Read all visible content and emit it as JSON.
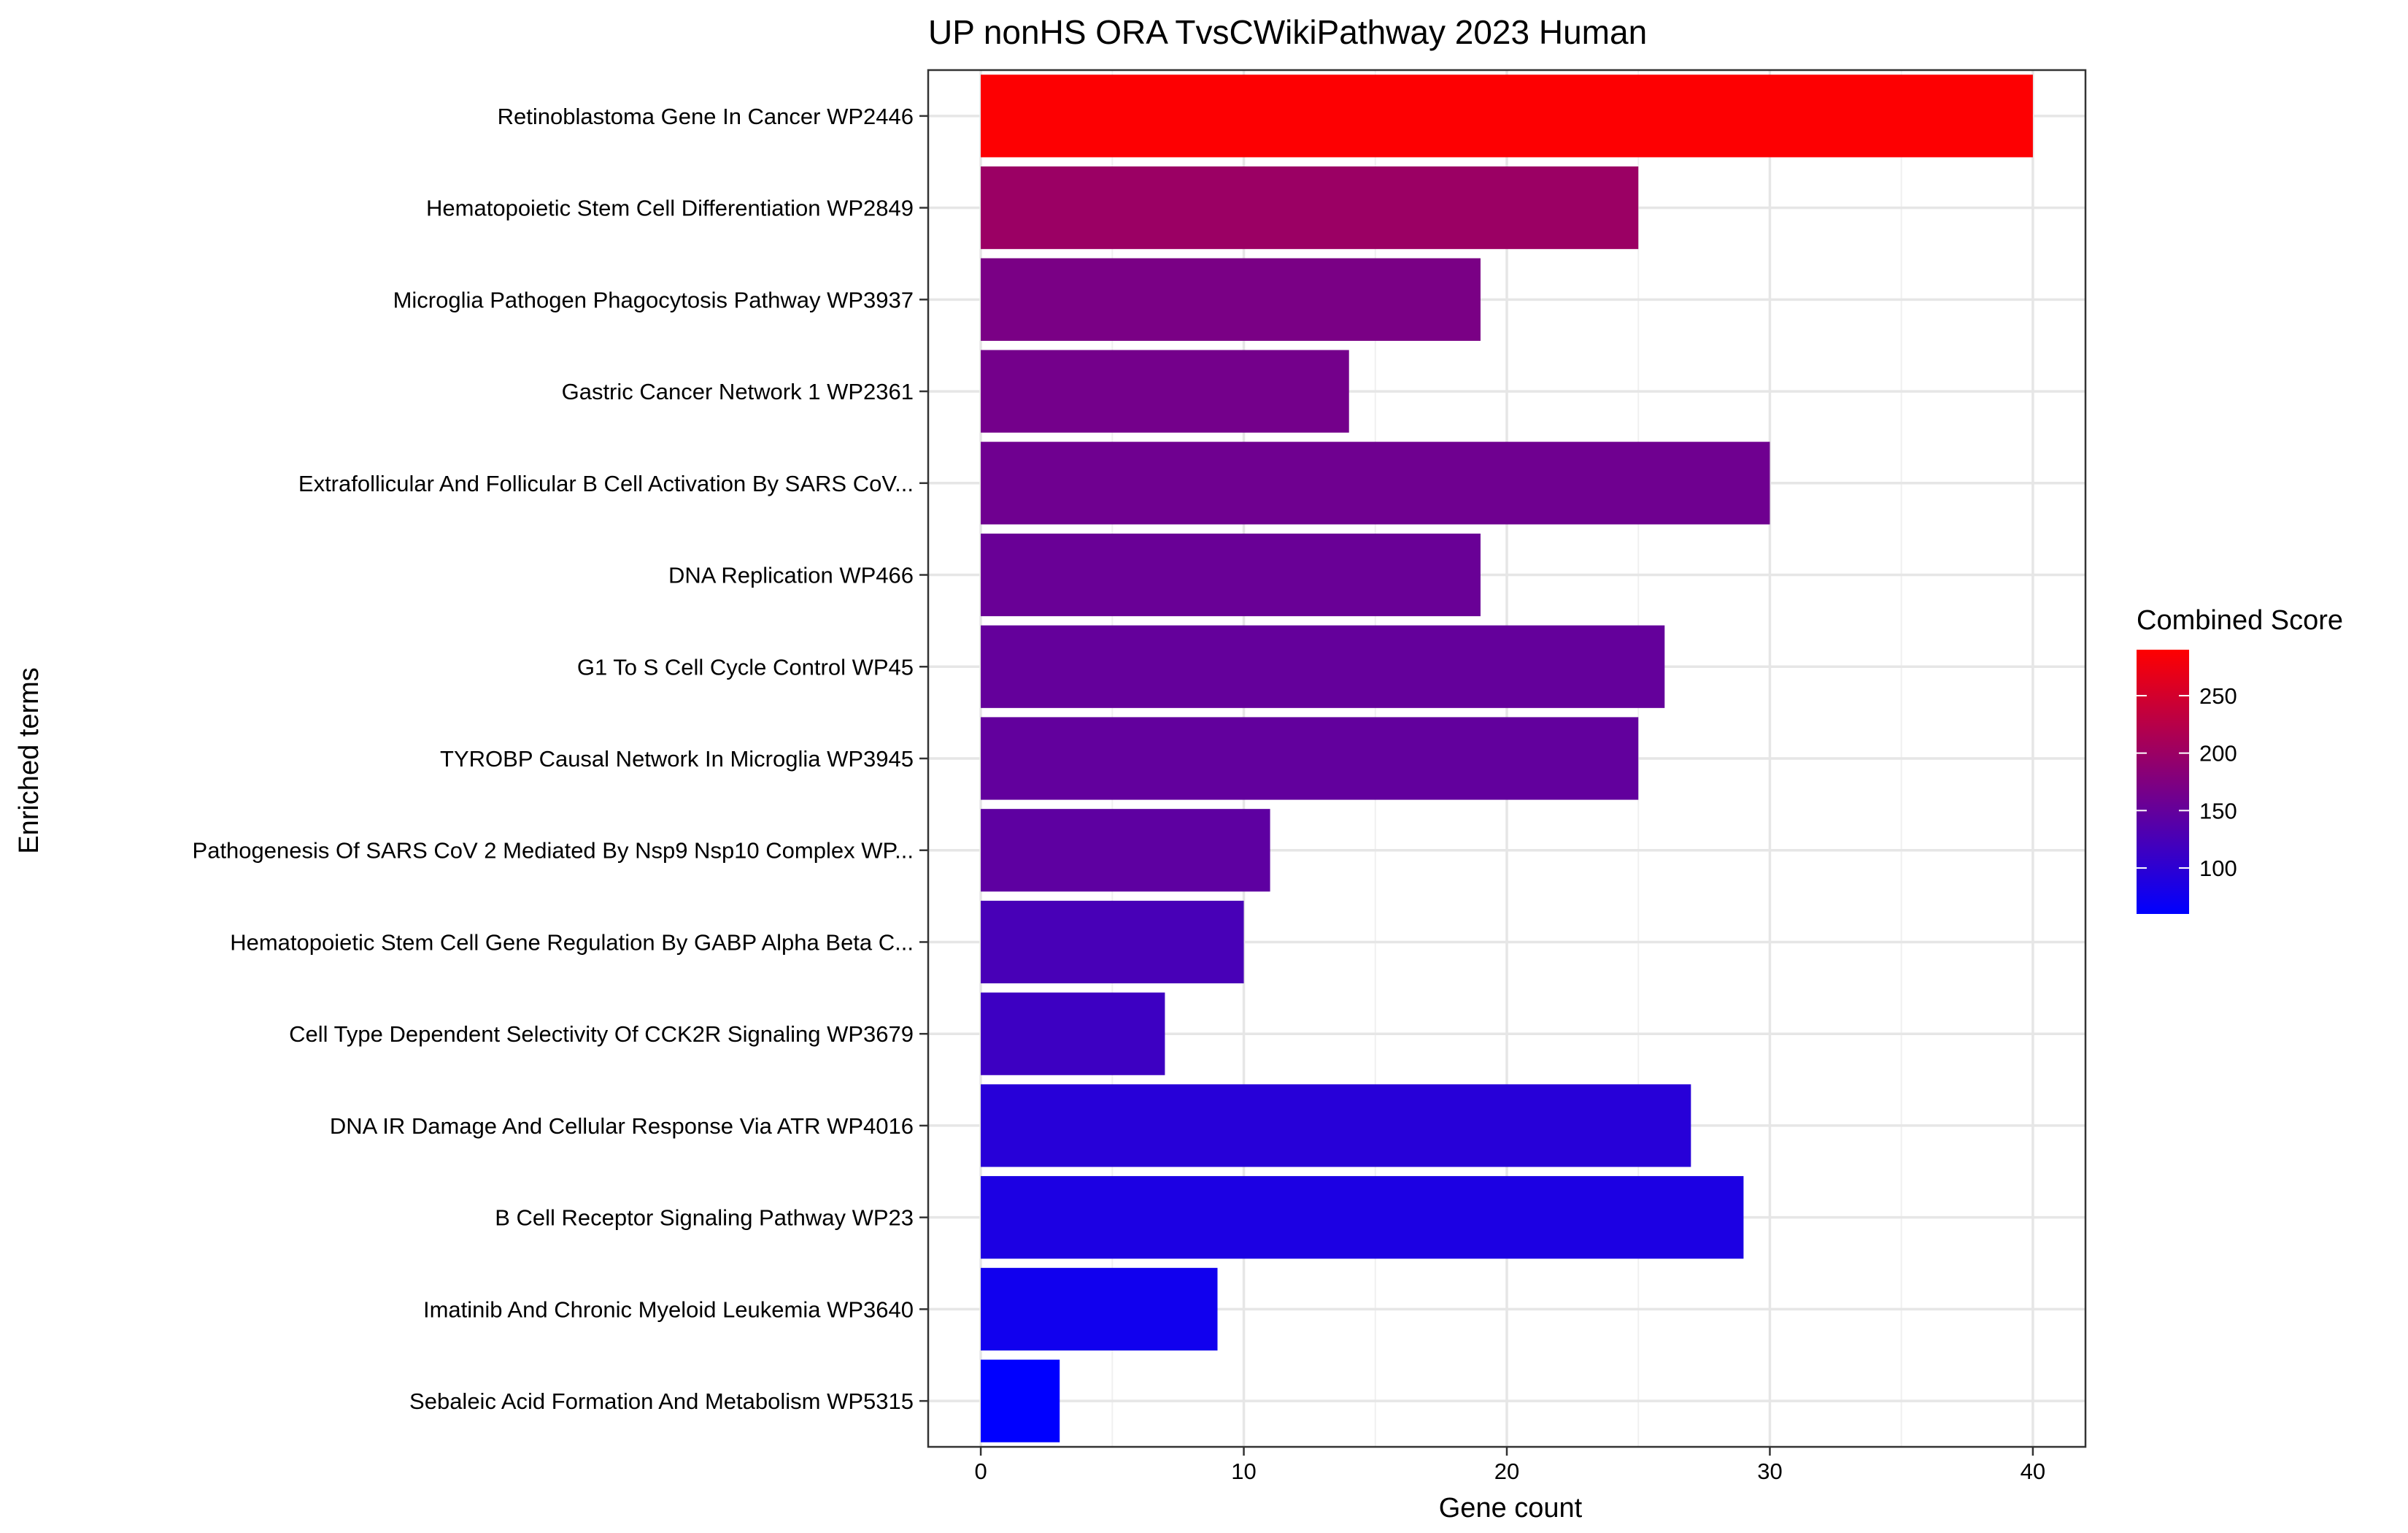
{
  "chart_data": {
    "type": "bar",
    "orientation": "horizontal",
    "title": "UP nonHS ORA TvsCWikiPathway 2023 Human",
    "xlabel": "Gene count",
    "ylabel": "Enriched terms",
    "xlim": [
      -2,
      42
    ],
    "xticks": [
      0,
      10,
      20,
      30,
      40
    ],
    "grid": true,
    "categories": [
      "Retinoblastoma Gene In Cancer WP2446",
      "Hematopoietic Stem Cell Differentiation WP2849",
      "Microglia Pathogen Phagocytosis Pathway WP3937",
      "Gastric Cancer Network 1 WP2361",
      "Extrafollicular And Follicular B Cell Activation By SARS CoV...",
      "DNA Replication WP466",
      "G1 To S Cell Cycle Control WP45",
      "TYROBP Causal Network In Microglia WP3945",
      "Pathogenesis Of SARS CoV 2 Mediated By Nsp9 Nsp10 Complex WP...",
      "Hematopoietic Stem Cell Gene Regulation By GABP Alpha Beta C...",
      "Cell Type Dependent Selectivity Of CCK2R Signaling WP3679",
      "DNA IR Damage And Cellular Response Via ATR WP4016",
      "B Cell Receptor Signaling Pathway WP23",
      "Imatinib And Chronic Myeloid Leukemia WP3640",
      "Sebaleic Acid Formation And Metabolism WP5315"
    ],
    "values": [
      40,
      25,
      19,
      14,
      30,
      19,
      26,
      25,
      11,
      10,
      7,
      27,
      29,
      9,
      3
    ],
    "combined_scores": [
      288,
      200,
      170,
      165,
      160,
      155,
      150,
      148,
      145,
      125,
      115,
      95,
      85,
      75,
      60
    ],
    "legend": {
      "title": "Combined Score",
      "position": "right",
      "ticks": [
        250,
        200,
        150,
        100
      ],
      "range": [
        60,
        290
      ],
      "low_color": "#0000FF",
      "high_color": "#FF0000"
    }
  }
}
